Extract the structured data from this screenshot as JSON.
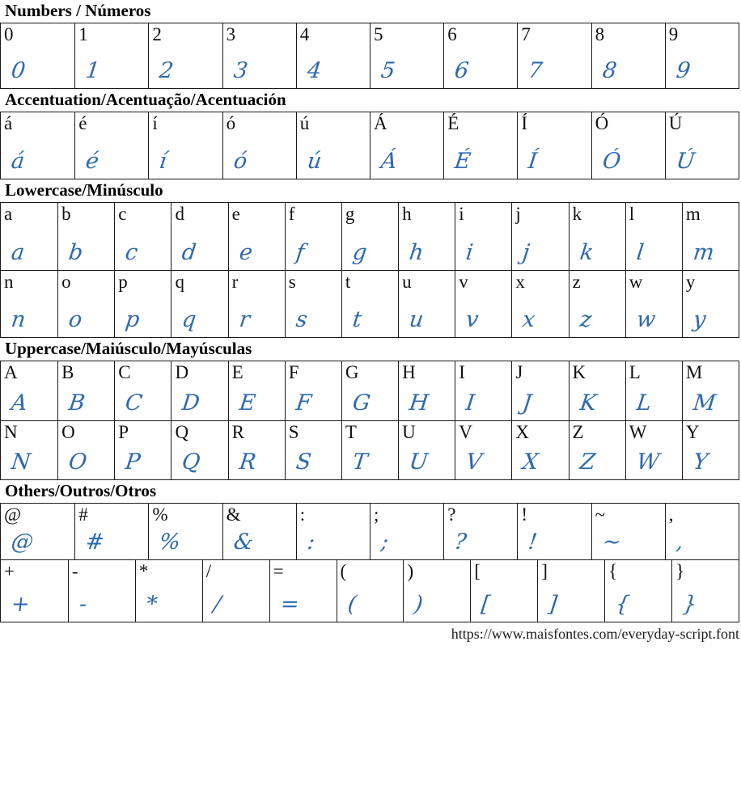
{
  "page": {
    "url_credit": "https://www.maisfontes.com/everyday-script.font",
    "script_color": "#2e6aad",
    "reference_color": "#111111",
    "border_color": "#1a1a1a"
  },
  "sections": [
    {
      "title": "Numbers / Números",
      "rows": [
        [
          "0",
          "1",
          "2",
          "3",
          "4",
          "5",
          "6",
          "7",
          "8",
          "9"
        ]
      ]
    },
    {
      "title": "Accentuation/Acentuação/Acentuación",
      "rows": [
        [
          "á",
          "é",
          "í",
          "ó",
          "ú",
          "Á",
          "É",
          "Í",
          "Ó",
          "Ú"
        ]
      ]
    },
    {
      "title": "Lowercase/Minúsculo",
      "rows": [
        [
          "a",
          "b",
          "c",
          "d",
          "e",
          "f",
          "g",
          "h",
          "i",
          "j",
          "k",
          "l",
          "m"
        ],
        [
          "n",
          "o",
          "p",
          "q",
          "r",
          "s",
          "t",
          "u",
          "v",
          "x",
          "z",
          "w",
          "y"
        ]
      ]
    },
    {
      "title": "Uppercase/Maiúsculo/Mayúsculas",
      "rows": [
        [
          "A",
          "B",
          "C",
          "D",
          "E",
          "F",
          "G",
          "H",
          "I",
          "J",
          "K",
          "L",
          "M"
        ],
        [
          "N",
          "O",
          "P",
          "Q",
          "R",
          "S",
          "T",
          "U",
          "V",
          "X",
          "Z",
          "W",
          "Y"
        ]
      ]
    },
    {
      "title": "Others/Outros/Otros",
      "rows": [
        [
          "@",
          "#",
          "%",
          "&",
          ":",
          ";",
          "?",
          "!",
          "~",
          ","
        ],
        [
          "+",
          "-",
          "*",
          "/",
          "=",
          "(",
          ")",
          "[",
          "]",
          "{",
          "}"
        ]
      ]
    }
  ]
}
